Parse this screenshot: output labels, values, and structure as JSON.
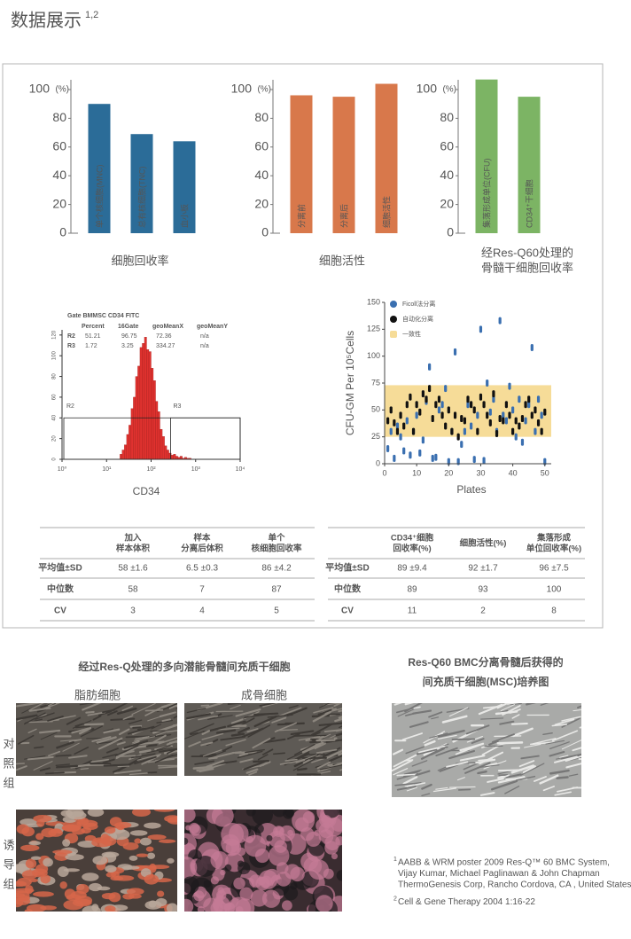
{
  "header": {
    "title": "数据展示",
    "superscript": "1,2"
  },
  "chart_data": [
    {
      "type": "bar",
      "title": "细胞回收率",
      "categories": [
        "单个核细胞(MNC)",
        "总有核细胞(TNC)",
        "血小板"
      ],
      "values": [
        90,
        69,
        64
      ],
      "color": "#2b6c98",
      "ylim": [
        0,
        100
      ],
      "yticks": [
        0,
        20,
        40,
        60,
        80,
        100
      ],
      "unit": "(%)"
    },
    {
      "type": "bar",
      "title": "细胞活性",
      "categories": [
        "分离前",
        "分离后",
        "细胞活性"
      ],
      "values": [
        96,
        95,
        104
      ],
      "color": "#d8784b",
      "ylim": [
        0,
        100
      ],
      "yticks": [
        0,
        20,
        40,
        60,
        80,
        100
      ],
      "unit": "(%)"
    },
    {
      "type": "bar",
      "title_lines": [
        "经Res-Q60处理的",
        "骨髓干细胞回收率"
      ],
      "categories": [
        "集落形成单位(CFU)",
        "CD34⁺干细胞"
      ],
      "values": [
        107,
        95
      ],
      "color": "#7cb464",
      "ylim": [
        0,
        100
      ],
      "yticks": [
        0,
        20,
        40,
        60,
        80,
        100
      ],
      "unit": "(%)"
    },
    {
      "type": "histogram",
      "x_label": "CD34",
      "log_x": true,
      "color": "#e0322f",
      "bins": [
        20,
        22.4,
        25.1,
        28.2,
        31.6,
        35.5,
        39.8,
        44.7,
        50.1,
        56.2,
        63.1,
        70.8,
        79.4,
        89.1,
        100,
        112,
        126,
        141,
        158,
        178,
        200,
        224,
        251,
        282,
        316,
        355,
        398,
        447,
        501,
        562,
        631,
        708,
        794
      ],
      "counts": [
        5,
        9,
        14,
        24,
        33,
        49,
        60,
        80,
        90,
        108,
        112,
        118,
        106,
        104,
        88,
        76,
        56,
        46,
        29,
        22,
        13,
        9,
        6,
        4,
        5,
        3,
        2,
        3,
        1,
        2,
        1,
        1
      ],
      "xlim": [
        1,
        10000
      ],
      "xticks": [
        {
          "value": 1,
          "label": "10⁰"
        },
        {
          "value": 10,
          "label": "10¹"
        },
        {
          "value": 100,
          "label": "10²"
        },
        {
          "value": 1000,
          "label": "10³"
        },
        {
          "value": 10000,
          "label": "10⁴"
        }
      ],
      "ylim": [
        0,
        125
      ],
      "yticks": [
        0,
        20,
        40,
        60,
        80,
        100,
        120
      ],
      "gates": [
        {
          "label": "R2",
          "x": [
            1,
            10000
          ],
          "y": 40
        },
        {
          "label": "R3",
          "x": [
            250,
            10000
          ],
          "y": 40
        }
      ],
      "stats": {
        "title": "Gate BMMSC CD34 FITC",
        "columns": [
          "Percent",
          "16Gate",
          "geoMeanX",
          "geoMeanY"
        ],
        "rows": [
          {
            "label": "R2",
            "cells": [
              "51.21",
              "96.75",
              "72.36",
              "n/a"
            ]
          },
          {
            "label": "R3",
            "cells": [
              "1.72",
              "3.25",
              "334.27",
              "n/a"
            ]
          }
        ]
      }
    },
    {
      "type": "scatter",
      "x_label": "Plates",
      "y_label": "CFU-GM Per 10⁵Cells",
      "x": [
        1,
        2,
        3,
        4,
        5,
        6,
        7,
        8,
        9,
        10,
        11,
        12,
        13,
        14,
        15,
        16,
        17,
        18,
        19,
        20,
        21,
        22,
        23,
        24,
        25,
        26,
        27,
        28,
        29,
        30,
        31,
        32,
        33,
        34,
        35,
        36,
        37,
        38,
        39,
        40,
        41,
        42,
        43,
        44,
        45,
        46,
        47,
        48,
        49,
        50
      ],
      "series": [
        {
          "name": "Ficoll法分离",
          "color": "#3a6fb0",
          "values": [
            14,
            30,
            5,
            35,
            25,
            12,
            40,
            8,
            30,
            45,
            10,
            22,
            58,
            90,
            5,
            6,
            50,
            55,
            70,
            2,
            30,
            104,
            2,
            18,
            30,
            55,
            35,
            4,
            45,
            125,
            3,
            75,
            48,
            60,
            30,
            133,
            45,
            40,
            72,
            50,
            25,
            60,
            20,
            40,
            55,
            108,
            30,
            60,
            45,
            2
          ]
        },
        {
          "name": "自动化分离",
          "color": "#111111",
          "values": [
            40,
            50,
            38,
            30,
            45,
            35,
            55,
            62,
            30,
            55,
            48,
            65,
            60,
            70,
            42,
            55,
            60,
            45,
            35,
            50,
            30,
            45,
            25,
            42,
            40,
            60,
            55,
            50,
            30,
            62,
            55,
            45,
            38,
            65,
            28,
            42,
            40,
            55,
            45,
            30,
            40,
            35,
            42,
            55,
            60,
            45,
            50,
            38,
            30,
            48
          ]
        }
      ],
      "band": {
        "name": "一致性",
        "color": "#f6dc98",
        "range": [
          25,
          73
        ]
      },
      "xlim": [
        0,
        52
      ],
      "xticks": [
        0,
        10,
        20,
        30,
        40,
        50
      ],
      "ylim": [
        0,
        150
      ],
      "yticks": [
        0,
        25,
        50,
        75,
        100,
        125,
        150
      ]
    }
  ],
  "tables": [
    {
      "header": [
        [],
        [
          "加入",
          "样本体积"
        ],
        [
          "样本",
          "分离后体积"
        ],
        [
          "单个",
          "核细胞回收率"
        ]
      ],
      "rows": [
        [
          "平均值±SD",
          "58 ±1.6",
          "6.5 ±0.3",
          "86 ±4.2"
        ],
        [
          "中位数",
          "58",
          "7",
          "87"
        ],
        [
          "CV",
          "3",
          "4",
          "5"
        ]
      ]
    },
    {
      "header": [
        [],
        [
          "CD34⁺细胞",
          "回收率(%)"
        ],
        [
          "细胞活性(%)"
        ],
        [
          "集落形成",
          "单位回收率(%)"
        ]
      ],
      "rows": [
        [
          "平均值±SD",
          "89 ±9.4",
          "92 ±1.7",
          "96 ±7.5"
        ],
        [
          "中位数",
          "89",
          "93",
          "100"
        ],
        [
          "CV",
          "11",
          "2",
          "8"
        ]
      ]
    }
  ],
  "gallery": {
    "title": "经过Res-Q处理的多向潜能骨髓间充质干细胞",
    "columns": [
      "脂肪细胞",
      "成骨细胞"
    ],
    "rows": [
      "对照组",
      "诱导组"
    ]
  },
  "culture": {
    "title_lines": [
      "Res-Q60 BMC分离骨髓后获得的",
      "间充质干细胞(MSC)培养图"
    ]
  },
  "footnotes": [
    {
      "marker": "1",
      "lines": [
        "AABB & WRM poster 2009 Res-Q™ 60 BMC System,",
        "Vijay Kumar, Michael Paglinawan & John Chapman",
        "ThermoGenesis Corp, Rancho Cordova, CA , United States"
      ]
    },
    {
      "marker": "2",
      "lines": [
        "Cell & Gene Therapy 2004 1:16-22"
      ]
    }
  ]
}
